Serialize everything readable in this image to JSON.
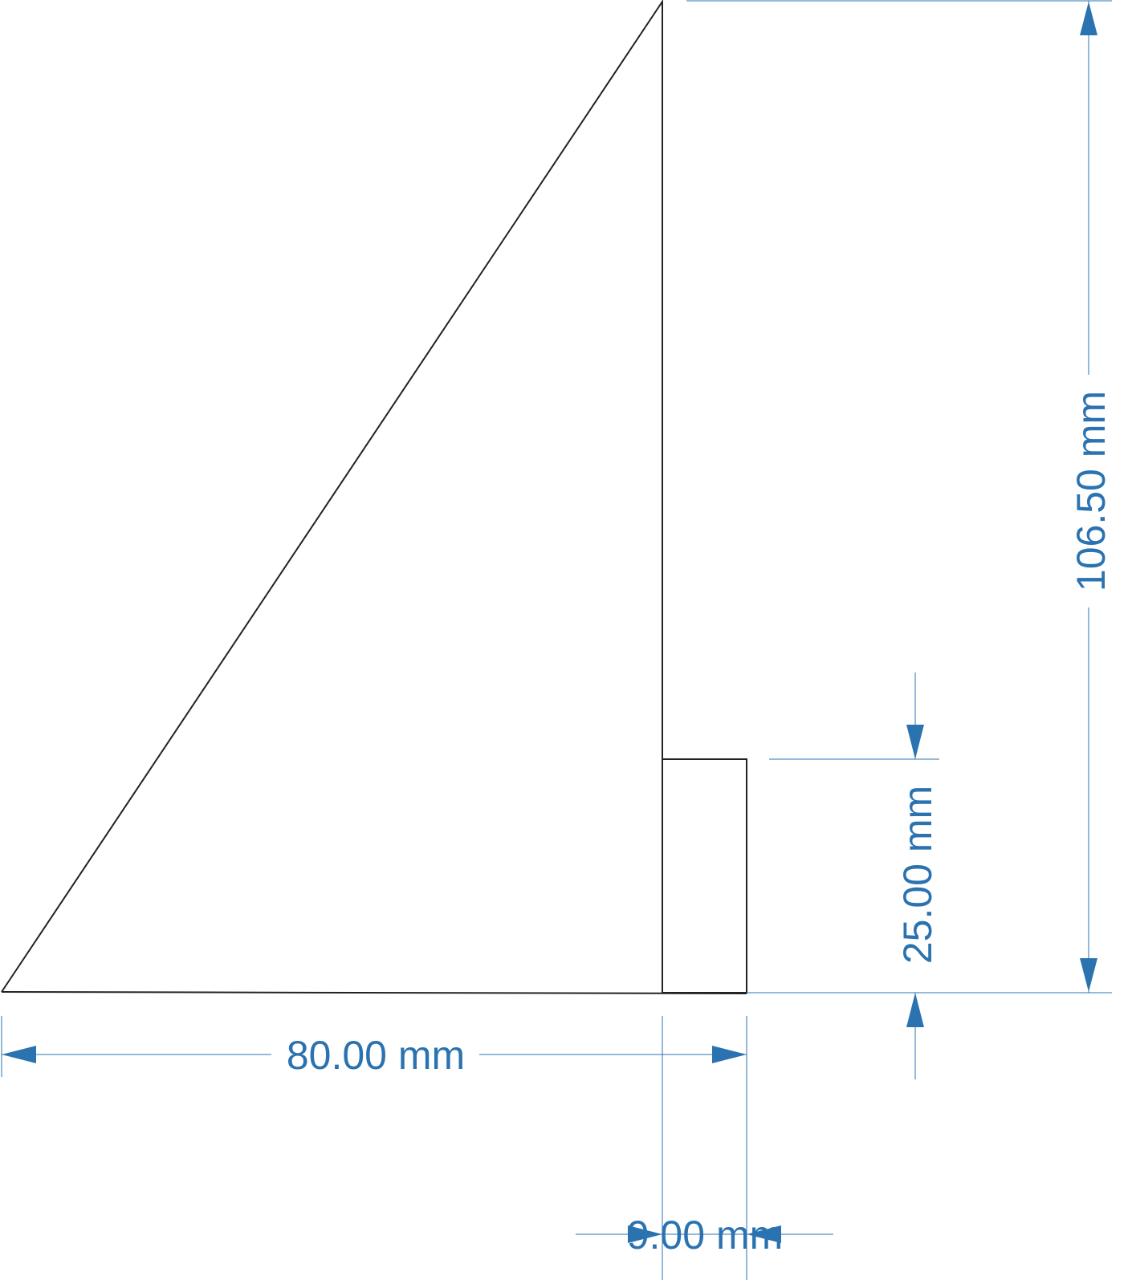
{
  "dimensions": {
    "width_label": "80.00 mm",
    "height_label": "106.50 mm",
    "block_height_label": "25.00 mm",
    "block_width_label": "9.00 mm"
  },
  "colors": {
    "outline": "#222222",
    "dimension": "#2b73b0"
  }
}
